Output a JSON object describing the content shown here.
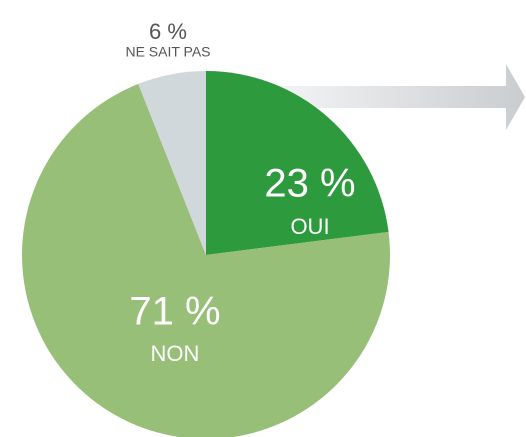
{
  "chart_data": {
    "type": "pie",
    "categories": [
      "OUI",
      "NON",
      "NE SAIT PAS"
    ],
    "values": [
      23,
      71,
      6
    ],
    "value_labels": [
      "23 %",
      "71 %",
      "6 %"
    ],
    "colors": [
      "#2e9a3e",
      "#97bf78",
      "#d0d8dc"
    ]
  }
}
